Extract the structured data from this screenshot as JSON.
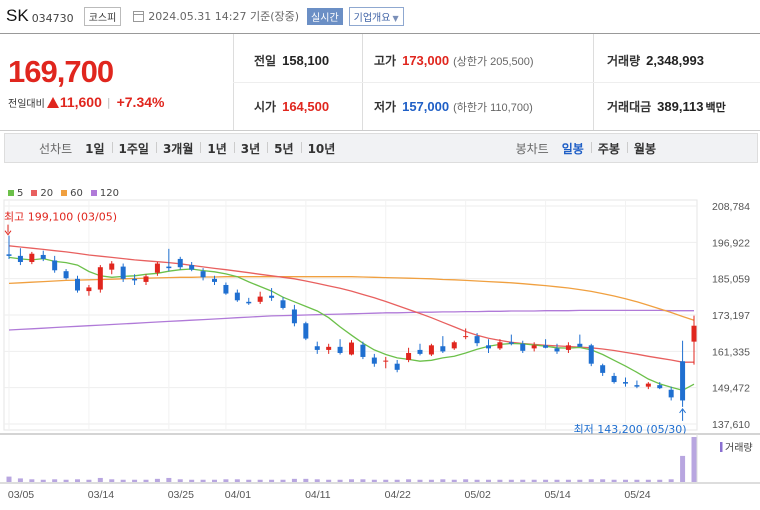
{
  "header": {
    "name": "SK",
    "code": "034730",
    "market": "코스피",
    "datetime": "2024.05.31 14:27 기준(장중)",
    "realtime_label": "실시간",
    "company_label": "기업개요"
  },
  "quote": {
    "price": "169,700",
    "change_label": "전일대비",
    "change_amount": "11,600",
    "change_percent": "+7.34%",
    "prev_close_label": "전일",
    "prev_close": "158,100",
    "open_label": "시가",
    "open": "164,500",
    "high_label": "고가",
    "high": "173,000",
    "upper_limit_label": "(상한가",
    "upper_limit": "205,500)",
    "low_label": "저가",
    "low": "157,000",
    "lower_limit_label": "(하한가",
    "lower_limit": "110,700)",
    "volume_label": "거래량",
    "volume": "2,348,993",
    "amount_label": "거래대금",
    "amount": "389,113",
    "amount_unit": "백만"
  },
  "period_bar": {
    "line_label": "선차트",
    "line_items": [
      "1일",
      "1주일",
      "3개월",
      "1년",
      "3년",
      "5년",
      "10년"
    ],
    "candle_label": "봉차트",
    "candle_items": [
      "일봉",
      "주봉",
      "월봉"
    ],
    "selected": "일봉"
  },
  "colors": {
    "up": "#e0261e",
    "down": "#1f6fd0",
    "ma5": "#6cc04a",
    "ma20": "#e8605f",
    "ma60": "#f0a040",
    "ma120": "#b07ad8",
    "volume": "#b8a6e0"
  },
  "chart_data": {
    "type": "candlestick",
    "legend": [
      "5",
      "20",
      "60",
      "120"
    ],
    "y_ticks": [
      208784,
      196922,
      185059,
      173197,
      161335,
      149472,
      137610
    ],
    "y_tick_labels": [
      "208,784",
      "196,922",
      "185,059",
      "173,197",
      "161,335",
      "149,472",
      "137,610"
    ],
    "ylim": [
      137610,
      208784
    ],
    "x_labels": [
      "03/05",
      "03/14",
      "03/25",
      "04/01",
      "04/11",
      "04/22",
      "05/02",
      "05/14",
      "05/24"
    ],
    "x_label_index": [
      0,
      7,
      14,
      19,
      26,
      33,
      40,
      47,
      54
    ],
    "high_annotation": "최고 199,100 (03/05)",
    "low_annotation": "최저 143,200 (05/30)",
    "volume_label": "거래량",
    "candles": [
      {
        "o": 193000,
        "h": 199100,
        "l": 191500,
        "c": 192500
      },
      {
        "o": 192500,
        "h": 195000,
        "l": 189500,
        "c": 190500
      },
      {
        "o": 190500,
        "h": 193800,
        "l": 189800,
        "c": 193200
      },
      {
        "o": 192800,
        "h": 194200,
        "l": 190800,
        "c": 191500
      },
      {
        "o": 191000,
        "h": 192500,
        "l": 187000,
        "c": 187800
      },
      {
        "o": 187500,
        "h": 188200,
        "l": 184800,
        "c": 185200
      },
      {
        "o": 185000,
        "h": 186000,
        "l": 180500,
        "c": 181200
      },
      {
        "o": 181000,
        "h": 183000,
        "l": 179500,
        "c": 182200
      },
      {
        "o": 181500,
        "h": 189500,
        "l": 180500,
        "c": 188800
      },
      {
        "o": 188000,
        "h": 190800,
        "l": 186500,
        "c": 190000
      },
      {
        "o": 189000,
        "h": 190000,
        "l": 184000,
        "c": 185000
      },
      {
        "o": 185000,
        "h": 186500,
        "l": 183000,
        "c": 184500
      },
      {
        "o": 184000,
        "h": 186500,
        "l": 183000,
        "c": 185800
      },
      {
        "o": 187000,
        "h": 190500,
        "l": 186000,
        "c": 190000
      },
      {
        "o": 189000,
        "h": 194800,
        "l": 187500,
        "c": 188500
      },
      {
        "o": 191500,
        "h": 192200,
        "l": 188000,
        "c": 188800
      },
      {
        "o": 189500,
        "h": 190500,
        "l": 187500,
        "c": 188000
      },
      {
        "o": 187500,
        "h": 188500,
        "l": 184500,
        "c": 185500
      },
      {
        "o": 185000,
        "h": 186000,
        "l": 183000,
        "c": 184000
      },
      {
        "o": 183000,
        "h": 183800,
        "l": 179800,
        "c": 180200
      },
      {
        "o": 180500,
        "h": 181500,
        "l": 177500,
        "c": 178000
      },
      {
        "o": 177500,
        "h": 178800,
        "l": 176500,
        "c": 177000
      },
      {
        "o": 177500,
        "h": 180800,
        "l": 176800,
        "c": 179200
      },
      {
        "o": 179500,
        "h": 182000,
        "l": 177800,
        "c": 178800
      },
      {
        "o": 178000,
        "h": 179000,
        "l": 175000,
        "c": 175500
      },
      {
        "o": 175000,
        "h": 176500,
        "l": 169500,
        "c": 170500
      },
      {
        "o": 170500,
        "h": 171000,
        "l": 165000,
        "c": 165500
      },
      {
        "o": 163000,
        "h": 164500,
        "l": 160500,
        "c": 161800
      },
      {
        "o": 161800,
        "h": 163800,
        "l": 160500,
        "c": 162800
      },
      {
        "o": 162800,
        "h": 165300,
        "l": 160300,
        "c": 160800
      },
      {
        "o": 160300,
        "h": 165000,
        "l": 160000,
        "c": 164200
      },
      {
        "o": 163500,
        "h": 164500,
        "l": 158800,
        "c": 159500
      },
      {
        "o": 159300,
        "h": 160500,
        "l": 156300,
        "c": 157300
      },
      {
        "o": 158000,
        "h": 159500,
        "l": 155800,
        "c": 158300
      },
      {
        "o": 157300,
        "h": 158500,
        "l": 154500,
        "c": 155300
      },
      {
        "o": 158500,
        "h": 162500,
        "l": 157800,
        "c": 160800
      },
      {
        "o": 161800,
        "h": 163800,
        "l": 160000,
        "c": 160500
      },
      {
        "o": 160300,
        "h": 163800,
        "l": 159800,
        "c": 163300
      },
      {
        "o": 163000,
        "h": 166300,
        "l": 160800,
        "c": 161300
      },
      {
        "o": 162300,
        "h": 164800,
        "l": 161800,
        "c": 164300
      },
      {
        "o": 166300,
        "h": 168800,
        "l": 165300,
        "c": 166300
      },
      {
        "o": 166300,
        "h": 167300,
        "l": 163000,
        "c": 164000
      },
      {
        "o": 163300,
        "h": 165300,
        "l": 160800,
        "c": 162300
      },
      {
        "o": 162300,
        "h": 165300,
        "l": 161800,
        "c": 164300
      },
      {
        "o": 164300,
        "h": 166800,
        "l": 163300,
        "c": 163800
      },
      {
        "o": 163800,
        "h": 164800,
        "l": 160800,
        "c": 161500
      },
      {
        "o": 162300,
        "h": 164300,
        "l": 161300,
        "c": 163300
      },
      {
        "o": 163300,
        "h": 165300,
        "l": 162300,
        "c": 162500
      },
      {
        "o": 162300,
        "h": 163800,
        "l": 160500,
        "c": 161300
      },
      {
        "o": 161800,
        "h": 164300,
        "l": 160800,
        "c": 163300
      },
      {
        "o": 163800,
        "h": 166800,
        "l": 162800,
        "c": 162800
      },
      {
        "o": 163300,
        "h": 163800,
        "l": 156500,
        "c": 157300
      },
      {
        "o": 156800,
        "h": 157300,
        "l": 153300,
        "c": 154300
      },
      {
        "o": 153300,
        "h": 154300,
        "l": 150800,
        "c": 151300
      },
      {
        "o": 151300,
        "h": 152800,
        "l": 149800,
        "c": 150800
      },
      {
        "o": 150300,
        "h": 151800,
        "l": 149300,
        "c": 149800
      },
      {
        "o": 149800,
        "h": 151300,
        "l": 149000,
        "c": 150800
      },
      {
        "o": 150300,
        "h": 151300,
        "l": 149000,
        "c": 149300
      },
      {
        "o": 148800,
        "h": 149800,
        "l": 145300,
        "c": 146300
      },
      {
        "o": 158100,
        "h": 164800,
        "l": 143200,
        "c": 145300
      },
      {
        "o": 164500,
        "h": 173000,
        "l": 157000,
        "c": 169700
      }
    ],
    "ma5": [
      192000,
      191500,
      191200,
      191600,
      190700,
      190300,
      189500,
      187400,
      186000,
      185500,
      185800,
      186000,
      186500,
      186800,
      187500,
      188000,
      188200,
      187700,
      187300,
      186600,
      185700,
      184000,
      182500,
      181000,
      179000,
      177500,
      176000,
      174500,
      172300,
      169300,
      166600,
      164000,
      161800,
      160300,
      159200,
      158700,
      158100,
      158400,
      159200,
      159700,
      160800,
      162000,
      163000,
      163600,
      163900,
      163800,
      163400,
      163000,
      162500,
      162400,
      162600,
      161800,
      160300,
      158400,
      156500,
      154500,
      152300,
      150700,
      149600,
      148600,
      150600
    ],
    "ma20": [
      195800,
      195400,
      195000,
      194600,
      194200,
      193800,
      193300,
      192800,
      192400,
      192000,
      191600,
      191200,
      190900,
      190600,
      190300,
      189900,
      189400,
      188900,
      188400,
      188000,
      187500,
      187000,
      186500,
      186000,
      185500,
      185000,
      184300,
      183500,
      182700,
      181900,
      181000,
      179900,
      178800,
      177600,
      176300,
      175000,
      173700,
      172300,
      170800,
      169300,
      167800,
      166600,
      165600,
      164900,
      164300,
      163900,
      163600,
      163300,
      163100,
      162900,
      162700,
      162500,
      162100,
      161600,
      161000,
      160400,
      159700,
      159100,
      158500,
      157800,
      157800
    ],
    "ma60": [
      183500,
      183700,
      183900,
      184100,
      184300,
      184500,
      184600,
      184700,
      184800,
      184900,
      185000,
      185100,
      185200,
      185300,
      185400,
      185500,
      185500,
      185600,
      185600,
      185700,
      185700,
      185700,
      185700,
      185700,
      185700,
      185700,
      185700,
      185700,
      185700,
      185700,
      185700,
      185600,
      185500,
      185400,
      185300,
      185200,
      185100,
      185000,
      184800,
      184700,
      184500,
      184300,
      184100,
      183900,
      183700,
      183400,
      183100,
      182800,
      182400,
      182000,
      181500,
      180900,
      180200,
      179400,
      178500,
      177500,
      176400,
      175200,
      174000,
      172700,
      171500
    ],
    "ma120": [
      168300,
      168500,
      168700,
      168900,
      169100,
      169300,
      169500,
      169700,
      169900,
      170100,
      170300,
      170500,
      170700,
      170900,
      171100,
      171300,
      171500,
      171700,
      171900,
      172100,
      172300,
      172500,
      172700,
      172900,
      173000,
      173100,
      173200,
      173300,
      173400,
      173500,
      173600,
      173700,
      173800,
      173900,
      173900,
      174000,
      174100,
      174100,
      174200,
      174200,
      174300,
      174300,
      174400,
      174400,
      174500,
      174500,
      174500,
      174600,
      174600,
      174600,
      174700,
      174700,
      174700,
      174700,
      174700,
      174700,
      174700,
      174700,
      174600,
      174600,
      174600
    ],
    "volume": [
      12,
      8,
      6,
      5,
      6,
      5,
      6,
      5,
      9,
      6,
      5,
      5,
      5,
      7,
      9,
      6,
      5,
      5,
      5,
      6,
      6,
      5,
      5,
      5,
      5,
      7,
      7,
      6,
      5,
      5,
      6,
      6,
      5,
      5,
      5,
      6,
      5,
      5,
      6,
      5,
      6,
      5,
      5,
      5,
      5,
      5,
      5,
      5,
      5,
      5,
      5,
      6,
      6,
      5,
      5,
      5,
      5,
      5,
      6,
      58,
      100
    ]
  }
}
